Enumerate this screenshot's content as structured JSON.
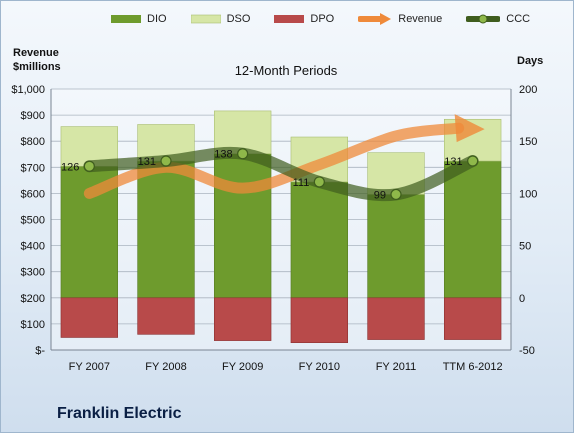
{
  "legend": {
    "dio": "DIO",
    "dso": "DSO",
    "dpo": "DPO",
    "revenue": "Revenue",
    "ccc": "CCC"
  },
  "left_axis_title": [
    "Revenue",
    "$millions"
  ],
  "right_axis_title": "Days",
  "title": "12-Month Periods",
  "company": "Franklin Electric",
  "colors": {
    "dio": "#6e9b2d",
    "dso": "#d6e6a6",
    "dpo": "#b84a4a",
    "revenue": "#ef8a3a",
    "ccc": "#3f5d1e"
  },
  "chart_data": {
    "type": "bar",
    "categories": [
      "FY 2007",
      "FY 2008",
      "FY 2009",
      "FY 2010",
      "FY 2011",
      "TTM 6-2012"
    ],
    "series": [
      {
        "name": "DIO",
        "axis": "days",
        "values": [
          126,
          131,
          138,
          111,
          99,
          131
        ],
        "bar_position": "stacked_positive"
      },
      {
        "name": "DSO",
        "axis": "days",
        "values": [
          38,
          35,
          41,
          43,
          40,
          40
        ],
        "bar_position": "stacked_positive"
      },
      {
        "name": "DPO",
        "axis": "days",
        "values": [
          -38,
          -35,
          -41,
          -43,
          -40,
          -40
        ],
        "bar_position": "negative"
      },
      {
        "name": "Revenue",
        "axis": "revenue",
        "type": "line",
        "values": [
          600,
          700,
          620,
          710,
          820,
          850
        ]
      },
      {
        "name": "CCC",
        "axis": "days",
        "type": "line",
        "values": [
          126,
          131,
          138,
          111,
          99,
          131
        ],
        "data_labels": [
          "126",
          "131",
          "138",
          "111",
          "99",
          "131"
        ]
      }
    ],
    "left_axis": {
      "title": "Revenue $millions",
      "ylim": [
        0,
        1000
      ],
      "ticks": [
        "$-",
        "$100",
        "$200",
        "$300",
        "$400",
        "$500",
        "$600",
        "$700",
        "$800",
        "$900",
        "$1,000"
      ]
    },
    "right_axis": {
      "title": "Days",
      "ylim": [
        -50,
        200
      ],
      "ticks": [
        "-50",
        "0",
        "50",
        "100",
        "150",
        "200"
      ]
    },
    "grid": true,
    "legend_position": "top"
  }
}
